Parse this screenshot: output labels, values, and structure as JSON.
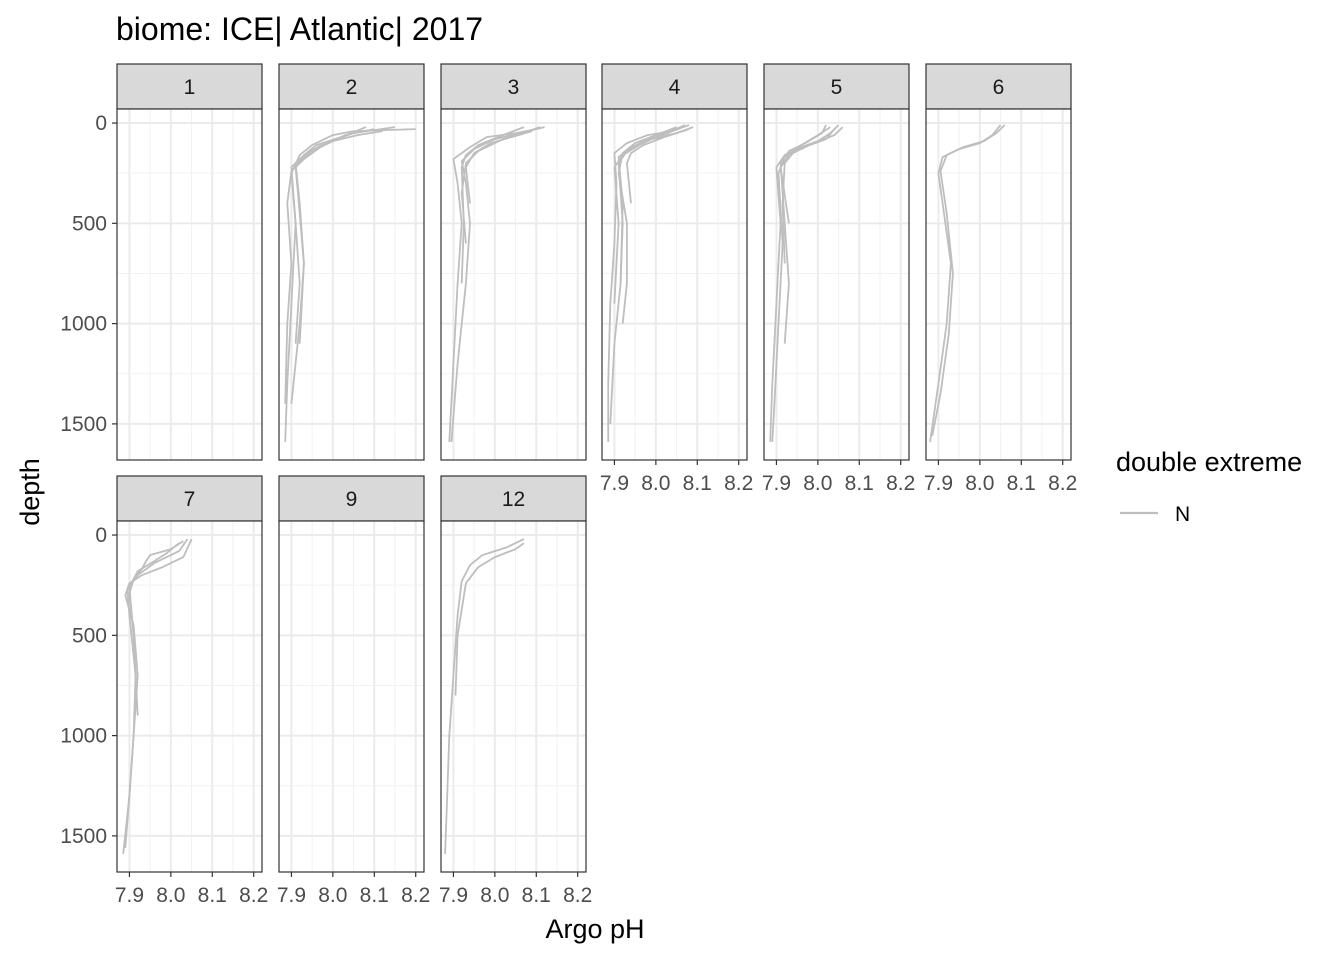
{
  "chart_data": {
    "type": "line",
    "title": "biome: ICE| Atlantic| 2017",
    "xlabel": "Argo pH",
    "ylabel": "depth",
    "xlim": [
      7.87,
      8.22
    ],
    "ylim": [
      1680,
      -70
    ],
    "y_reversed": true,
    "xticks": [
      7.9,
      8.0,
      8.1,
      8.2
    ],
    "xtick_labels": [
      "7.9",
      "8.0",
      "8.1",
      "8.2"
    ],
    "yticks": [
      0,
      500,
      1000,
      1500
    ],
    "ytick_labels": [
      "0",
      "500",
      "1000",
      "1500"
    ],
    "grid": true,
    "line_color": "#bebebe",
    "legend": {
      "title": "double extreme",
      "position": "right",
      "entries": [
        {
          "label": "N",
          "color": "#bebebe"
        }
      ]
    },
    "panels": [
      {
        "label": "1",
        "series": []
      },
      {
        "label": "2",
        "series": [
          {
            "x": [
              8.2,
              8.05,
              8.0,
              7.95,
              7.92,
              7.9,
              7.91,
              7.9,
              7.89,
              7.885
            ],
            "y": [
              30,
              40,
              60,
              110,
              160,
              250,
              500,
              900,
              1300,
              1590
            ]
          },
          {
            "x": [
              8.08,
              8.02,
              7.96,
              7.93,
              7.91,
              7.92,
              7.93,
              7.92,
              7.9
            ],
            "y": [
              20,
              70,
              110,
              160,
              220,
              450,
              700,
              1000,
              1400
            ]
          },
          {
            "x": [
              8.15,
              8.05,
              7.98,
              7.93,
              7.9,
              7.91,
              7.92,
              7.91
            ],
            "y": [
              20,
              50,
              100,
              160,
              220,
              500,
              800,
              1100
            ]
          },
          {
            "x": [
              8.1,
              8.03,
              7.97,
              7.93,
              7.9,
              7.89,
              7.9,
              7.89,
              7.885
            ],
            "y": [
              30,
              60,
              120,
              180,
              240,
              400,
              700,
              1000,
              1400
            ]
          },
          {
            "x": [
              8.12,
              8.06,
              8.0,
              7.95,
              7.91,
              7.92,
              7.93,
              7.92
            ],
            "y": [
              40,
              60,
              90,
              140,
              200,
              400,
              700,
              1100
            ]
          }
        ]
      },
      {
        "label": "3",
        "series": [
          {
            "x": [
              8.1,
              8.05,
              7.98,
              7.94,
              7.9,
              7.91,
              7.92,
              7.91,
              7.9,
              7.89
            ],
            "y": [
              30,
              50,
              70,
              120,
              180,
              300,
              500,
              800,
              1200,
              1590
            ]
          },
          {
            "x": [
              8.12,
              8.06,
              8.0,
              7.95,
              7.92,
              7.93,
              7.94,
              7.93,
              7.91,
              7.895
            ],
            "y": [
              20,
              50,
              80,
              130,
              190,
              300,
              500,
              800,
              1200,
              1590
            ]
          },
          {
            "x": [
              8.07,
              8.02,
              7.96,
              7.93,
              7.92,
              7.925,
              7.92
            ],
            "y": [
              20,
              60,
              110,
              160,
              220,
              500,
              800
            ]
          },
          {
            "x": [
              8.11,
              8.08,
              8.02,
              7.96,
              7.93,
              7.92,
              7.93
            ],
            "y": [
              20,
              40,
              80,
              140,
              200,
              350,
              600
            ]
          },
          {
            "x": [
              8.09,
              8.04,
              7.99,
              7.95,
              7.93,
              7.94
            ],
            "y": [
              40,
              70,
              100,
              150,
              220,
              400
            ]
          }
        ]
      },
      {
        "label": "4",
        "series": [
          {
            "x": [
              8.08,
              8.04,
              7.98,
              7.93,
              7.9,
              7.905,
              7.9,
              7.89,
              7.885,
              7.885
            ],
            "y": [
              10,
              40,
              60,
              100,
              150,
              300,
              600,
              900,
              1300,
              1590
            ]
          },
          {
            "x": [
              8.09,
              8.05,
              7.99,
              7.94,
              7.91,
              7.92,
              7.915,
              7.9,
              7.89
            ],
            "y": [
              20,
              50,
              80,
              120,
              170,
              400,
              800,
              1100,
              1500
            ]
          },
          {
            "x": [
              8.06,
              8.01,
              7.96,
              7.92,
              7.9,
              7.91,
              7.9
            ],
            "y": [
              20,
              60,
              110,
              160,
              220,
              500,
              900
            ]
          },
          {
            "x": [
              8.07,
              8.03,
              7.97,
              7.93,
              7.91,
              7.92,
              7.915
            ],
            "y": [
              10,
              50,
              90,
              140,
              200,
              500,
              800
            ]
          },
          {
            "x": [
              8.05,
              8.0,
              7.95,
              7.92,
              7.91,
              7.93,
              7.93,
              7.92
            ],
            "y": [
              20,
              60,
              100,
              150,
              250,
              500,
              800,
              1000
            ]
          },
          {
            "x": [
              8.08,
              8.02,
              7.97,
              7.94,
              7.93,
              7.94
            ],
            "y": [
              30,
              70,
              110,
              150,
              200,
              400
            ]
          }
        ]
      },
      {
        "label": "5",
        "series": [
          {
            "x": [
              8.05,
              8.03,
              8.0,
              7.96,
              7.92,
              7.9,
              7.91,
              7.9,
              7.89,
              7.885
            ],
            "y": [
              10,
              50,
              90,
              120,
              160,
              220,
              500,
              900,
              1300,
              1590
            ]
          },
          {
            "x": [
              8.06,
              8.04,
              7.99,
              7.95,
              7.92,
              7.905,
              7.915,
              7.905,
              7.895,
              7.89
            ],
            "y": [
              20,
              60,
              100,
              130,
              170,
              250,
              600,
              1000,
              1400,
              1590
            ]
          },
          {
            "x": [
              8.02,
              8.01,
              7.97,
              7.93,
              7.91,
              7.92,
              7.93,
              7.92
            ],
            "y": [
              10,
              50,
              100,
              140,
              200,
              500,
              800,
              1100
            ]
          },
          {
            "x": [
              8.04,
              8.02,
              7.98,
              7.94,
              7.92,
              7.915,
              7.92
            ],
            "y": [
              30,
              80,
              110,
              150,
              200,
              400,
              700
            ]
          },
          {
            "x": [
              8.03,
              8.0,
              7.96,
              7.93,
              7.91,
              7.93
            ],
            "y": [
              20,
              60,
              110,
              160,
              220,
              500
            ]
          }
        ]
      },
      {
        "label": "6",
        "series": [
          {
            "x": [
              8.05,
              8.03,
              8.0,
              7.95,
              7.91,
              7.9,
              7.91,
              7.93,
              7.92,
              7.9,
              7.88
            ],
            "y": [
              10,
              60,
              100,
              130,
              170,
              250,
              400,
              700,
              1000,
              1300,
              1590
            ]
          },
          {
            "x": [
              8.06,
              8.04,
              8.01,
              7.96,
              7.92,
              7.905,
              7.92,
              7.935,
              7.925,
              7.905,
              7.885
            ],
            "y": [
              10,
              50,
              90,
              120,
              160,
              240,
              450,
              750,
              1050,
              1350,
              1560
            ]
          }
        ]
      },
      {
        "label": "7",
        "series": [
          {
            "x": [
              8.05,
              8.03,
              7.98,
              7.93,
              7.9,
              7.89,
              7.91,
              7.92,
              7.91,
              7.9,
              7.885
            ],
            "y": [
              20,
              110,
              160,
              200,
              240,
              300,
              450,
              700,
              1000,
              1300,
              1590
            ]
          },
          {
            "x": [
              8.04,
              8.02,
              7.96,
              7.92,
              7.895,
              7.9,
              7.915,
              7.91,
              7.9,
              7.89
            ],
            "y": [
              20,
              80,
              140,
              200,
              270,
              400,
              700,
              1000,
              1300,
              1560
            ]
          },
          {
            "x": [
              8.03,
              8.0,
              7.95,
              7.94,
              7.93,
              7.91,
              7.9,
              7.91,
              7.92
            ],
            "y": [
              30,
              70,
              100,
              130,
              170,
              220,
              290,
              500,
              900
            ]
          },
          {
            "x": [
              8.02,
              7.99,
              7.96,
              7.92,
              7.9,
              7.91
            ],
            "y": [
              40,
              90,
              130,
              180,
              260,
              500
            ]
          }
        ]
      },
      {
        "label": "9",
        "series": []
      },
      {
        "label": "12",
        "series": [
          {
            "x": [
              8.07,
              8.03,
              7.97,
              7.94,
              7.92,
              7.91,
              7.9,
              7.89,
              7.885,
              7.88
            ],
            "y": [
              20,
              60,
              100,
              150,
              230,
              400,
              700,
              1000,
              1300,
              1590
            ]
          },
          {
            "x": [
              8.07,
              8.05,
              8.0,
              7.96,
              7.93,
              7.91,
              7.905
            ],
            "y": [
              40,
              70,
              110,
              160,
              240,
              500,
              800
            ]
          }
        ]
      }
    ]
  }
}
